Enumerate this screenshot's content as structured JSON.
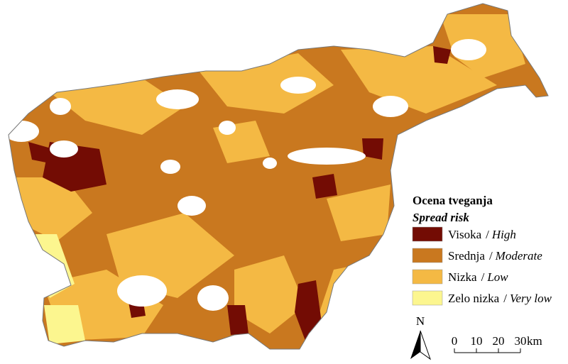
{
  "legend": {
    "title": "Ocena tveganja",
    "subtitle": "Spread risk",
    "separator": "/",
    "items": [
      {
        "name": "Visoka",
        "name_en": "High",
        "color": "#730c04"
      },
      {
        "name": "Srednja",
        "name_en": "Moderate",
        "color": "#c9781f"
      },
      {
        "name": "Nizka",
        "name_en": "Low",
        "color": "#f4b944"
      },
      {
        "name": "Zelo nizka",
        "name_en": "Very low",
        "color": "#fcf68f"
      }
    ]
  },
  "north_arrow": {
    "label": "N"
  },
  "scale_bar": {
    "ticks": [
      0,
      10,
      20,
      30
    ],
    "unit": "km"
  }
}
